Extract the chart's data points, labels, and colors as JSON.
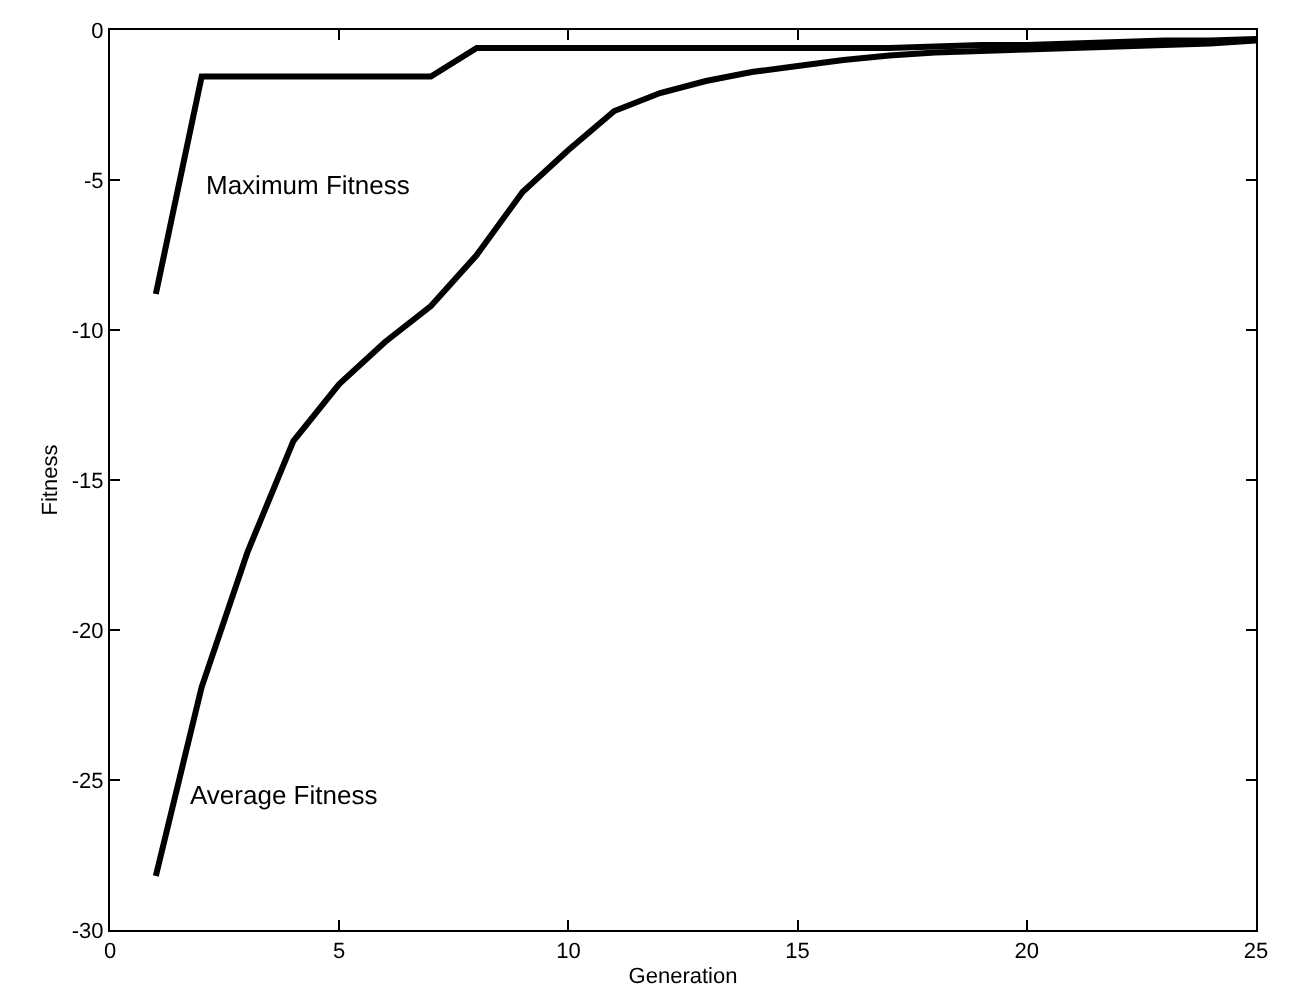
{
  "chart_data": {
    "type": "line",
    "xlabel": "Generation",
    "ylabel": "Fitness",
    "x": [
      1,
      2,
      3,
      4,
      5,
      6,
      7,
      8,
      9,
      10,
      11,
      12,
      13,
      14,
      15,
      16,
      17,
      18,
      19,
      20,
      21,
      22,
      23,
      24,
      25
    ],
    "series": [
      {
        "color": "#000000",
        "values": [
          -8.8,
          -1.55,
          -1.55,
          -1.55,
          -1.55,
          -1.55,
          -1.55,
          -0.6,
          -0.6,
          -0.6,
          -0.6,
          -0.6,
          -0.6,
          -0.6,
          -0.6,
          -0.6,
          -0.6,
          -0.55,
          -0.5,
          -0.5,
          -0.45,
          -0.4,
          -0.35,
          -0.35,
          -0.3
        ]
      },
      {
        "color": "#000000",
        "values": [
          -28.2,
          -21.9,
          -17.4,
          -13.7,
          -11.8,
          -10.4,
          -9.2,
          -7.5,
          -5.4,
          -4.0,
          -2.7,
          -2.1,
          -1.7,
          -1.4,
          -1.2,
          -1.0,
          -0.85,
          -0.75,
          -0.7,
          -0.65,
          -0.6,
          -0.55,
          -0.5,
          -0.45,
          -0.35
        ]
      }
    ],
    "annotations": [
      "Maximum Fitness",
      "Average Fitness"
    ],
    "xlim": [
      0,
      25
    ],
    "xticks": [
      0,
      5,
      10,
      15,
      20,
      25
    ],
    "ylim": [
      -30,
      0
    ],
    "yticks": [
      -30,
      -25,
      -20,
      -15,
      -10,
      -5,
      0
    ],
    "legend": false,
    "marker": "none",
    "line_style": "solid"
  }
}
